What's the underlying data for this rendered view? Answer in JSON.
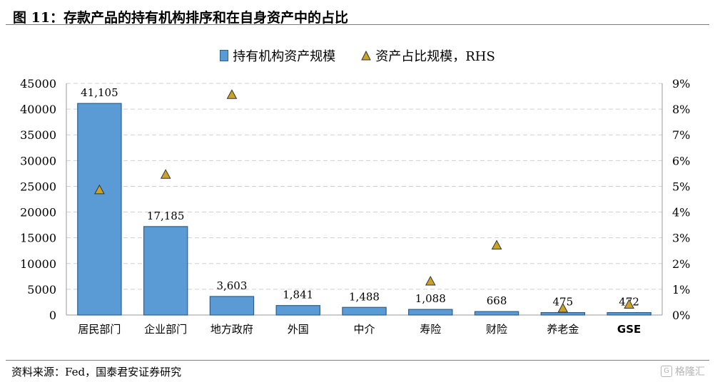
{
  "header": {
    "title": "图 11：存款产品的持有机构排序和在自身资产中的占比"
  },
  "legend": {
    "bar_label": "持有机构资产规模",
    "marker_label": "资产占比规模，RHS"
  },
  "footer": {
    "source": "资料来源：Fed，国泰君安证券研究"
  },
  "watermark": {
    "text": "格隆汇",
    "icon": "G"
  },
  "colors": {
    "bar": "#5b9bd5",
    "bar_edge": "#2e5f8a",
    "marker": "#c9a227",
    "grid": "#d0d0d0"
  },
  "chart_data": {
    "type": "bar",
    "categories": [
      "居民部门",
      "企业部门",
      "地方政府",
      "外国",
      "中介",
      "寿险",
      "财险",
      "养老金",
      "GSE"
    ],
    "series": [
      {
        "name": "持有机构资产规模",
        "type": "bar",
        "axis": "left",
        "values": [
          41105,
          17185,
          3603,
          1841,
          1488,
          1088,
          668,
          475,
          472
        ],
        "labels": [
          "41,105",
          "17,185",
          "3,603",
          "1,841",
          "1,488",
          "1,088",
          "668",
          "475",
          "472"
        ]
      },
      {
        "name": "资产占比规模，RHS",
        "type": "scatter",
        "marker": "triangle",
        "axis": "right",
        "values": [
          4.85,
          5.45,
          8.55,
          null,
          null,
          1.3,
          2.7,
          0.25,
          0.4
        ]
      }
    ],
    "ylim": [
      0,
      45000
    ],
    "yticks": [
      "0",
      "5000",
      "10000",
      "15000",
      "20000",
      "25000",
      "30000",
      "35000",
      "40000",
      "45000"
    ],
    "y2lim": [
      0,
      9
    ],
    "y2ticks": [
      "0%",
      "1%",
      "2%",
      "3%",
      "4%",
      "5%",
      "6%",
      "7%",
      "8%",
      "9%"
    ],
    "grid": true,
    "legend_position": "top"
  }
}
